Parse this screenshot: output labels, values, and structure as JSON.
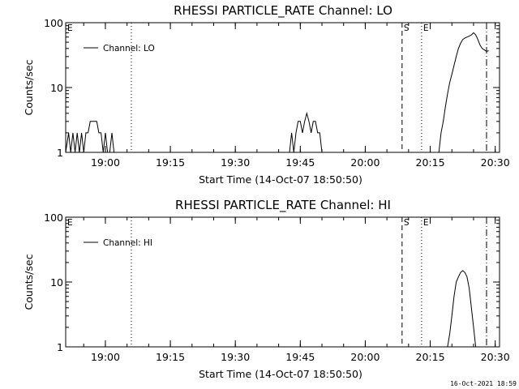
{
  "chart_data": [
    {
      "type": "line",
      "title": "RHESSI PARTICLE_RATE Channel: LO",
      "xlabel": "Start Time (14-Oct-07 18:50:50)",
      "ylabel": "Counts/sec",
      "y_scale": "log",
      "ylim": [
        1,
        100
      ],
      "xlim": [
        "18:50:50",
        "20:31:00"
      ],
      "x_tick_labels": [
        "19:00",
        "19:15",
        "19:30",
        "19:45",
        "20:00",
        "20:15",
        "20:30"
      ],
      "y_tick_labels": [
        "1",
        "10",
        "100"
      ],
      "legend": {
        "position": "top-left",
        "entries": [
          "Channel: LO"
        ]
      },
      "markers": [
        {
          "label": "E",
          "time": "18:50:50",
          "style": "none"
        },
        {
          "label": "",
          "time": "19:06:00",
          "style": "dotted"
        },
        {
          "label": "S",
          "time": "20:08:30",
          "style": "dashed"
        },
        {
          "label": "E",
          "time": "20:13:00",
          "style": "dotted"
        },
        {
          "label": "",
          "time": "20:28:00",
          "style": "dash-dot"
        }
      ],
      "series": [
        {
          "name": "Channel: LO",
          "segments": [
            [
              [
                "18:50:50",
                1.0
              ],
              [
                "18:51:30",
                2.0
              ],
              [
                "18:52:00",
                1.0
              ],
              [
                "18:52:30",
                2.0
              ],
              [
                "18:53:00",
                1.0
              ],
              [
                "18:53:30",
                2.0
              ],
              [
                "18:54:00",
                1.0
              ],
              [
                "18:54:30",
                2.0
              ],
              [
                "18:55:00",
                1.0
              ],
              [
                "18:55:30",
                2.0
              ],
              [
                "18:56:00",
                2.0
              ],
              [
                "18:56:30",
                3.0
              ],
              [
                "18:57:30",
                3.0
              ],
              [
                "18:58:00",
                3.0
              ],
              [
                "18:58:30",
                2.0
              ],
              [
                "18:59:00",
                2.0
              ],
              [
                "18:59:30",
                1.0
              ],
              [
                "19:00:00",
                2.0
              ],
              [
                "19:00:30",
                1.0
              ],
              [
                "19:01:00",
                1.0
              ],
              [
                "19:01:30",
                2.0
              ],
              [
                "19:02:00",
                1.0
              ]
            ],
            [
              [
                "19:42:30",
                1.0
              ],
              [
                "19:43:00",
                2.0
              ],
              [
                "19:43:30",
                1.0
              ],
              [
                "19:44:00",
                2.0
              ],
              [
                "19:44:30",
                3.0
              ],
              [
                "19:45:00",
                3.0
              ],
              [
                "19:45:30",
                2.0
              ],
              [
                "19:46:00",
                3.0
              ],
              [
                "19:46:30",
                4.0
              ],
              [
                "19:47:00",
                3.0
              ],
              [
                "19:47:30",
                2.0
              ],
              [
                "19:48:00",
                3.0
              ],
              [
                "19:48:30",
                3.0
              ],
              [
                "19:49:00",
                2.0
              ],
              [
                "19:49:30",
                2.0
              ],
              [
                "19:50:00",
                1.0
              ]
            ],
            [
              [
                "20:17:00",
                1.0
              ],
              [
                "20:17:30",
                2.0
              ],
              [
                "20:18:00",
                3.0
              ],
              [
                "20:18:30",
                5.0
              ],
              [
                "20:19:00",
                8.0
              ],
              [
                "20:19:30",
                12.0
              ],
              [
                "20:20:00",
                16.0
              ],
              [
                "20:20:30",
                22.0
              ],
              [
                "20:21:00",
                30.0
              ],
              [
                "20:21:30",
                40.0
              ],
              [
                "20:22:00",
                48.0
              ],
              [
                "20:22:30",
                55.0
              ],
              [
                "20:23:00",
                58.0
              ],
              [
                "20:23:30",
                60.0
              ],
              [
                "20:24:00",
                62.0
              ],
              [
                "20:24:30",
                65.0
              ],
              [
                "20:25:00",
                70.0
              ],
              [
                "20:25:30",
                65.0
              ],
              [
                "20:26:00",
                55.0
              ],
              [
                "20:26:30",
                45.0
              ],
              [
                "20:27:00",
                40.0
              ],
              [
                "20:27:30",
                38.0
              ],
              [
                "20:28:00",
                36.0
              ],
              [
                "20:28:30",
                37.0
              ]
            ]
          ]
        }
      ]
    },
    {
      "type": "line",
      "title": "RHESSI PARTICLE_RATE Channel: HI",
      "xlabel": "Start Time (14-Oct-07 18:50:50)",
      "ylabel": "Counts/sec",
      "y_scale": "log",
      "ylim": [
        1,
        100
      ],
      "xlim": [
        "18:50:50",
        "20:31:00"
      ],
      "x_tick_labels": [
        "19:00",
        "19:15",
        "19:30",
        "19:45",
        "20:00",
        "20:15",
        "20:30"
      ],
      "y_tick_labels": [
        "1",
        "10",
        "100"
      ],
      "legend": {
        "position": "top-left",
        "entries": [
          "Channel: HI"
        ]
      },
      "markers": [
        {
          "label": "E",
          "time": "18:50:50",
          "style": "none"
        },
        {
          "label": "",
          "time": "19:06:00",
          "style": "dotted"
        },
        {
          "label": "S",
          "time": "20:08:30",
          "style": "dashed"
        },
        {
          "label": "E",
          "time": "20:13:00",
          "style": "dotted"
        },
        {
          "label": "",
          "time": "20:28:00",
          "style": "dash-dot"
        }
      ],
      "series": [
        {
          "name": "Channel: HI",
          "segments": [
            [
              [
                "20:19:00",
                1.0
              ],
              [
                "20:19:30",
                1.6
              ],
              [
                "20:20:00",
                3.0
              ],
              [
                "20:20:30",
                6.0
              ],
              [
                "20:21:00",
                10.0
              ],
              [
                "20:21:30",
                12.0
              ],
              [
                "20:22:00",
                14.0
              ],
              [
                "20:22:30",
                15.0
              ],
              [
                "20:23:00",
                14.0
              ],
              [
                "20:23:30",
                12.0
              ],
              [
                "20:24:00",
                8.0
              ],
              [
                "20:24:30",
                4.0
              ],
              [
                "20:25:00",
                2.0
              ],
              [
                "20:25:30",
                1.0
              ]
            ]
          ]
        }
      ]
    }
  ],
  "footer": {
    "timestamp": "16-Oct-2021 18:59"
  }
}
